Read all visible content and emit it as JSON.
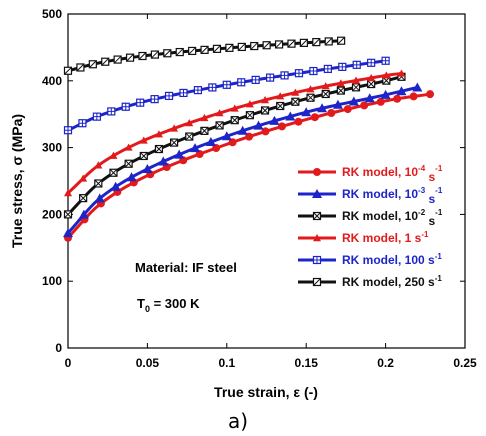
{
  "chart_data": {
    "type": "line",
    "xlabel": "True strain,   ε (-)",
    "ylabel": "True stress,  σ (MPa)",
    "xlim": [
      0,
      0.25
    ],
    "ylim": [
      0,
      500
    ],
    "x_ticks": [
      "0",
      "0.05",
      "0.1",
      "0.15",
      "0.2",
      "0.25"
    ],
    "y_ticks": [
      "0",
      "100",
      "200",
      "300",
      "400",
      "500"
    ],
    "grid": false,
    "legend_position": "right",
    "annotations": {
      "material": "Material: IF steel",
      "temperature": "T",
      "temperature_sub": "0",
      "temperature_value": " = 300 K"
    },
    "caption": "a)",
    "series": [
      {
        "name": "RK model, 10",
        "name_sup": "-4",
        "name_suffix": " s",
        "name_suffix_sup": "-1",
        "color": "#e31a1c",
        "marker": "circle",
        "x_end": 0.228,
        "points": [
          [
            0,
            165
          ],
          [
            0.02,
            215
          ],
          [
            0.05,
            258
          ],
          [
            0.1,
            305
          ],
          [
            0.15,
            342
          ],
          [
            0.2,
            370
          ],
          [
            0.228,
            380
          ]
        ]
      },
      {
        "name": "RK model, 10",
        "name_sup": "-3",
        "name_suffix": " s",
        "name_suffix_sup": "-1",
        "color": "#1d24c8",
        "marker": "triangle",
        "x_end": 0.22,
        "points": [
          [
            0,
            172
          ],
          [
            0.02,
            224
          ],
          [
            0.05,
            268
          ],
          [
            0.1,
            317
          ],
          [
            0.15,
            353
          ],
          [
            0.2,
            379
          ],
          [
            0.22,
            390
          ]
        ]
      },
      {
        "name": "RK model, 10",
        "name_sup": "-2",
        "name_suffix": " s",
        "name_suffix_sup": "-1",
        "color": "#111111",
        "marker": "square-x",
        "x_end": 0.21,
        "points": [
          [
            0,
            200
          ],
          [
            0.02,
            248
          ],
          [
            0.05,
            290
          ],
          [
            0.1,
            337
          ],
          [
            0.15,
            373
          ],
          [
            0.2,
            400
          ],
          [
            0.21,
            406
          ]
        ]
      },
      {
        "name": "RK model, 1 s",
        "name_sup": "",
        "name_suffix": "",
        "name_suffix_sup": "-1",
        "color": "#e31a1c",
        "marker": "triangle-small",
        "x_end": 0.21,
        "points": [
          [
            0,
            232
          ],
          [
            0.02,
            275
          ],
          [
            0.05,
            313
          ],
          [
            0.1,
            355
          ],
          [
            0.15,
            386
          ],
          [
            0.2,
            408
          ],
          [
            0.21,
            411
          ]
        ]
      },
      {
        "name": "RK model, 100 s",
        "name_sup": "",
        "name_suffix": "",
        "name_suffix_sup": "-1",
        "color": "#1d24c8",
        "marker": "square-plus",
        "x_end": 0.2,
        "points": [
          [
            0,
            326
          ],
          [
            0.02,
            348
          ],
          [
            0.05,
            370
          ],
          [
            0.1,
            394
          ],
          [
            0.15,
            413
          ],
          [
            0.2,
            430
          ]
        ]
      },
      {
        "name": "RK model, 250 s",
        "name_sup": "",
        "name_suffix": "",
        "name_suffix_sup": "-1",
        "color": "#111111",
        "marker": "square-slash",
        "x_end": 0.172,
        "points": [
          [
            0,
            415
          ],
          [
            0.02,
            427
          ],
          [
            0.05,
            438
          ],
          [
            0.1,
            449
          ],
          [
            0.15,
            457
          ],
          [
            0.172,
            460
          ]
        ]
      }
    ]
  }
}
